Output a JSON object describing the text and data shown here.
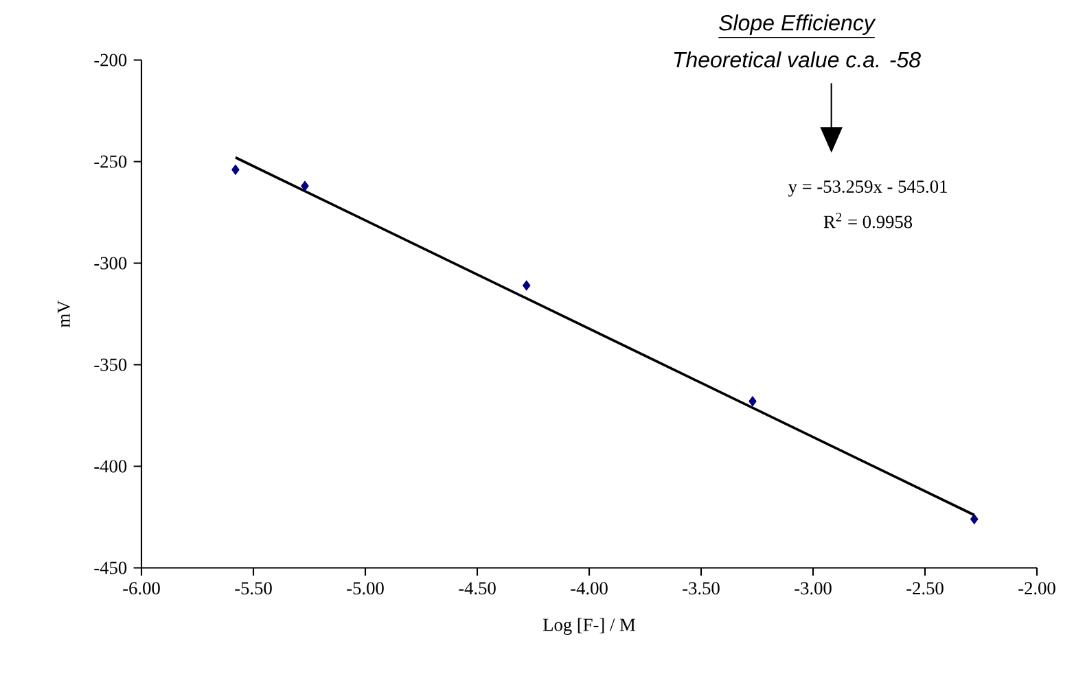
{
  "chart_data": {
    "type": "scatter",
    "xlabel": "Log [F-] / M",
    "ylabel": "mV",
    "xlim": [
      -6,
      -2
    ],
    "xticks": [
      {
        "value": -6,
        "label": "-6.00"
      },
      {
        "value": -5.5,
        "label": "-5.50"
      },
      {
        "value": -5,
        "label": "-5.00"
      },
      {
        "value": -4.5,
        "label": "-4.50"
      },
      {
        "value": -4,
        "label": "-4.00"
      },
      {
        "value": -3.5,
        "label": "-3.50"
      },
      {
        "value": -3,
        "label": "-3.00"
      },
      {
        "value": -2.5,
        "label": "-2.50"
      },
      {
        "value": -2,
        "label": "-2.00"
      }
    ],
    "ylim": [
      -450,
      -200
    ],
    "yticks": [
      -450,
      -400,
      -350,
      -300,
      -250,
      -200
    ],
    "grid": false,
    "series": [
      {
        "marker": "diamond",
        "color": "#000080",
        "x": [
          -5.58,
          -5.27,
          -4.28,
          -3.27,
          -2.28
        ],
        "values": [
          -254,
          -262,
          -311,
          -368,
          -426
        ]
      },
      {
        "type": "line",
        "marker": "none",
        "color": "#000000",
        "x": [
          -5.58,
          -2.28
        ],
        "values": [
          -248,
          -424
        ]
      }
    ],
    "annotations": [
      "Slope Efficiency",
      "Theoretical value c.a. -58",
      "y = -53.259x - 545.01",
      "R$^{2}$ = 0.9958"
    ]
  }
}
